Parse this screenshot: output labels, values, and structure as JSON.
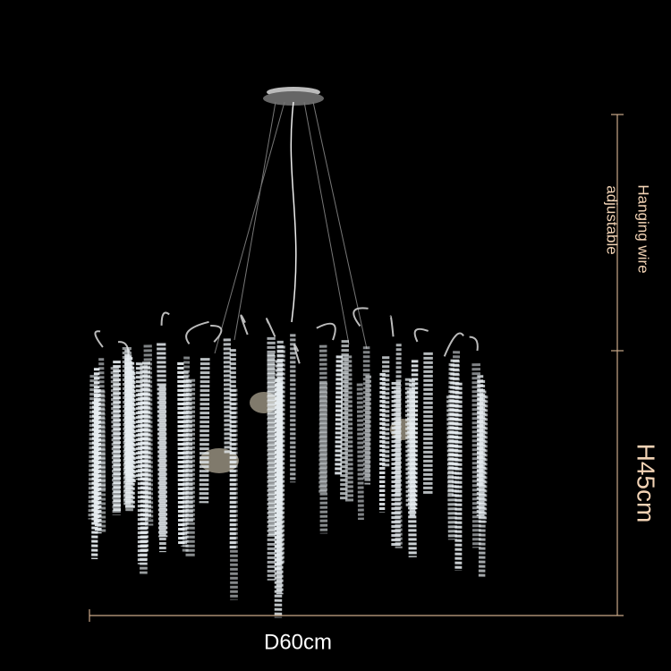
{
  "annotations": {
    "hanging_wire": [
      "Hanging wire",
      "adjustable"
    ],
    "height": "H45cm",
    "diameter": "D60cm"
  }
}
